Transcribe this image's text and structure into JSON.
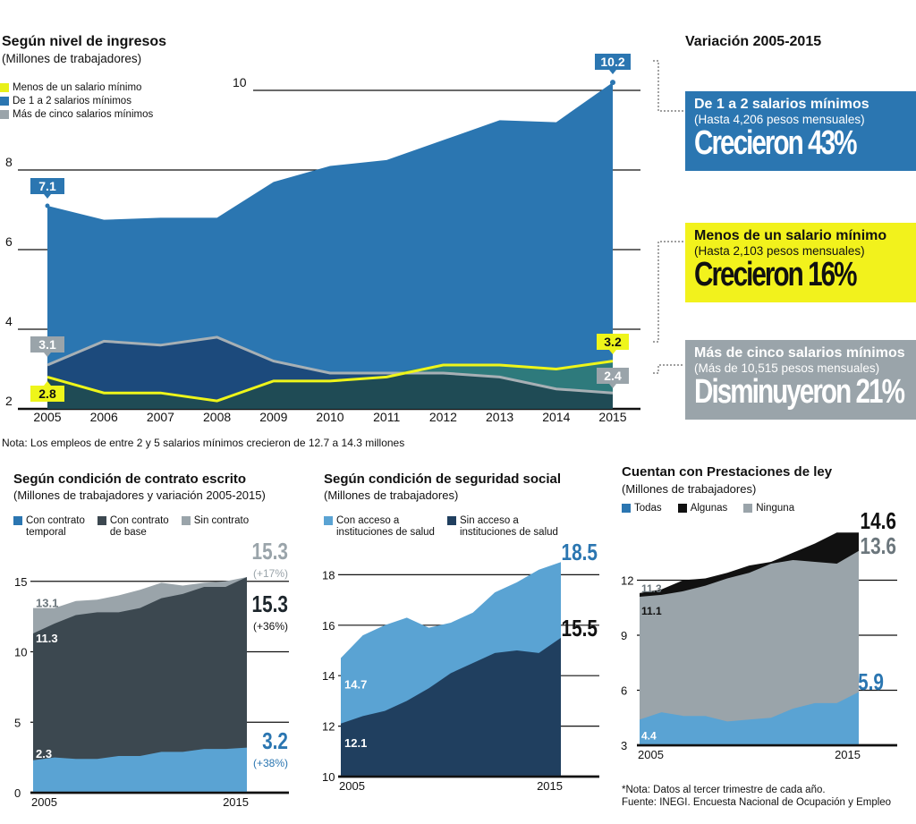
{
  "chart_data": [
    {
      "id": "ingresos",
      "type": "area",
      "title": "Según nivel de ingresos",
      "subtitle": "(Millones de trabajadores)",
      "x": [
        2005,
        2006,
        2007,
        2008,
        2009,
        2010,
        2011,
        2012,
        2013,
        2014,
        2015
      ],
      "xticks": [
        "2005",
        "2006",
        "2007",
        "2008",
        "2009",
        "2010",
        "2011",
        "2012",
        "2013",
        "2014",
        "2015"
      ],
      "yticks": [
        "2",
        "4",
        "6",
        "8",
        "10"
      ],
      "ylim": [
        2,
        10.5
      ],
      "grid": true,
      "legend": "top-left",
      "series": [
        {
          "name": "Menos de un salario mínimo",
          "color": "#e8f019",
          "values": [
            2.8,
            2.4,
            2.4,
            2.2,
            2.7,
            2.7,
            2.8,
            3.1,
            3.1,
            3.0,
            3.2
          ]
        },
        {
          "name": "De 1 a 2 salarios mínimos",
          "color": "#2b76b1",
          "values": [
            7.1,
            6.75,
            6.8,
            6.8,
            7.7,
            8.1,
            8.25,
            8.75,
            9.25,
            9.2,
            10.2
          ]
        },
        {
          "name": "Más de cinco salarios mínimos",
          "color": "#9aa4aa",
          "values": [
            3.1,
            3.7,
            3.6,
            3.8,
            3.2,
            2.9,
            2.9,
            2.9,
            2.8,
            2.5,
            2.4
          ]
        }
      ],
      "labels": {
        "start_blue": "7.1",
        "end_blue": "10.2",
        "start_gray": "3.1",
        "end_gray": "2.4",
        "start_yellow": "2.8",
        "end_yellow": "3.2"
      }
    },
    {
      "id": "contrato",
      "type": "area",
      "title": "Según condición de contrato escrito",
      "subtitle": "(Millones de trabajadores y variación 2005-2015)",
      "x": [
        2005,
        2006,
        2007,
        2008,
        2009,
        2010,
        2011,
        2012,
        2013,
        2014,
        2015
      ],
      "xticks": [
        "2005",
        "2015"
      ],
      "yticks": [
        "0",
        "5",
        "10",
        "15"
      ],
      "ylim": [
        0,
        15.5
      ],
      "legend": "top-left",
      "series": [
        {
          "name": "Con contrato temporal",
          "color": "#5aa3d3",
          "values": [
            2.3,
            2.5,
            2.4,
            2.4,
            2.6,
            2.6,
            2.9,
            2.9,
            3.1,
            3.1,
            3.2
          ]
        },
        {
          "name": "Con contrato de base",
          "color": "#3c4850",
          "values": [
            11.3,
            12.0,
            12.6,
            12.8,
            12.8,
            13.1,
            13.8,
            14.1,
            14.6,
            14.6,
            15.3
          ]
        },
        {
          "name": "Sin contrato",
          "color": "#9aa4aa",
          "values": [
            13.1,
            13.1,
            13.6,
            13.7,
            14.0,
            14.4,
            14.9,
            14.7,
            14.9,
            15.0,
            15.3
          ]
        }
      ],
      "labels": {
        "start_temporal": "2.3",
        "start_base": "11.3",
        "start_sin": "13.1"
      },
      "end_labels": [
        {
          "value": "15.3",
          "pct": "(+17%)",
          "color": "#9aa4aa"
        },
        {
          "value": "15.3",
          "pct": "(+36%)",
          "color": "#1d262c"
        },
        {
          "value": "3.2",
          "pct": "(+38%)",
          "color": "#2b76b1"
        }
      ]
    },
    {
      "id": "seguridad",
      "type": "area",
      "title": "Según condición de seguridad social",
      "subtitle": "(Millones de trabajadores)",
      "x": [
        2005,
        2006,
        2007,
        2008,
        2009,
        2010,
        2011,
        2012,
        2013,
        2014,
        2015
      ],
      "xticks": [
        "2005",
        "2015"
      ],
      "yticks": [
        "10",
        "12",
        "14",
        "16",
        "18"
      ],
      "ylim": [
        10,
        18.5
      ],
      "legend": "top-left",
      "series": [
        {
          "name": "Con acceso a instituciones de salud",
          "color": "#5aa3d3",
          "values": [
            14.7,
            15.6,
            16.0,
            16.3,
            15.9,
            16.1,
            16.5,
            17.3,
            17.7,
            18.2,
            18.5
          ]
        },
        {
          "name": "Sin acceso a instituciones de salud",
          "color": "#203f5f",
          "values": [
            12.1,
            12.4,
            12.6,
            13.0,
            13.5,
            14.1,
            14.5,
            14.9,
            15.0,
            14.9,
            15.5
          ]
        }
      ],
      "labels": {
        "start_con": "14.7",
        "start_sin": "12.1"
      },
      "end_labels": [
        {
          "value": "18.5",
          "color": "#2b76b1"
        },
        {
          "value": "15.5",
          "color": "#111111"
        }
      ]
    },
    {
      "id": "prestaciones",
      "type": "area",
      "title": "Cuentan con Prestaciones de ley",
      "subtitle": "(Millones de trabajadores)",
      "x": [
        2005,
        2006,
        2007,
        2008,
        2009,
        2010,
        2011,
        2012,
        2013,
        2014,
        2015
      ],
      "xticks": [
        "2005",
        "2015"
      ],
      "yticks": [
        "3",
        "6",
        "9",
        "12"
      ],
      "ylim": [
        3,
        15
      ],
      "legend": "top-left",
      "series": [
        {
          "name": "Todas",
          "color": "#5aa3d3",
          "values": [
            4.4,
            4.8,
            4.6,
            4.6,
            4.3,
            4.4,
            4.5,
            5.0,
            5.3,
            5.3,
            5.9
          ]
        },
        {
          "name": "Algunas",
          "color": "#111111",
          "values": [
            11.3,
            11.5,
            12.0,
            12.1,
            12.4,
            12.8,
            13.0,
            13.5,
            14.0,
            14.6,
            14.6
          ]
        },
        {
          "name": "Ninguna",
          "color": "#9aa4aa",
          "values": [
            11.1,
            11.2,
            11.4,
            11.7,
            12.1,
            12.4,
            12.9,
            13.1,
            13.0,
            12.9,
            13.6
          ]
        }
      ],
      "labels": {
        "start_algunas": "11.3",
        "start_ninguna": "11.1",
        "start_todas": "4.4"
      },
      "end_labels": [
        {
          "value": "14.6",
          "color": "#111111"
        },
        {
          "value": "13.6",
          "color": "#6b767c"
        },
        {
          "value": "5.9",
          "color": "#2b76b1"
        }
      ]
    }
  ],
  "variacion": {
    "title": "Variación 2005-2015",
    "boxes": [
      {
        "title": "De 1 a 2 salarios mínimos",
        "sub": "(Hasta 4,206 pesos mensuales)",
        "big": "Crecieron 43%",
        "bg": "#2b76b1",
        "fg": "#ffffff"
      },
      {
        "title": "Menos de un salario mínimo",
        "sub": "(Hasta 2,103 pesos mensuales)",
        "big": "Crecieron 16%",
        "bg": "#f2f21c",
        "fg": "#111111"
      },
      {
        "title": "Más de cinco salarios mínimos",
        "sub": "(Más de 10,515 pesos mensuales)",
        "big": "Disminuyeron 21%",
        "bg": "#9aa4aa",
        "fg": "#ffffff"
      }
    ]
  },
  "notes": {
    "nota_top": "Nota: Los empleos de entre 2 y 5 salarios mínimos crecieron de 12.7 a 14.3 millones",
    "nota_bottom": "*Nota: Datos al tercer trimestre de cada año.",
    "fuente": "Fuente: INEGI. Encuesta Nacional de Ocupación y Empleo"
  },
  "legends": {
    "contrato": [
      {
        "line1": "Con contrato",
        "line2": "temporal",
        "color": "#2b76b1"
      },
      {
        "line1": "Con contrato",
        "line2": "de base",
        "color": "#3c4850"
      },
      {
        "line1": "Sin contrato",
        "line2": "",
        "color": "#9aa4aa"
      }
    ],
    "seguridad": [
      {
        "line1": "Con acceso a",
        "line2": "instituciones de salud",
        "color": "#5aa3d3"
      },
      {
        "line1": "Sin acceso a",
        "line2": "instituciones de salud",
        "color": "#203f5f"
      }
    ],
    "prestaciones": [
      {
        "line1": "Todas",
        "color": "#2b76b1"
      },
      {
        "line1": "Algunas",
        "color": "#111111"
      },
      {
        "line1": "Ninguna",
        "color": "#9aa4aa"
      }
    ],
    "ingresos": [
      {
        "line1": "Menos de un salario mínimo",
        "color": "#e8f019"
      },
      {
        "line1": "De 1 a 2 salarios mínimos",
        "color": "#2b76b1"
      },
      {
        "line1": "Más de cinco salarios mínimos",
        "color": "#9aa4aa"
      }
    ]
  }
}
